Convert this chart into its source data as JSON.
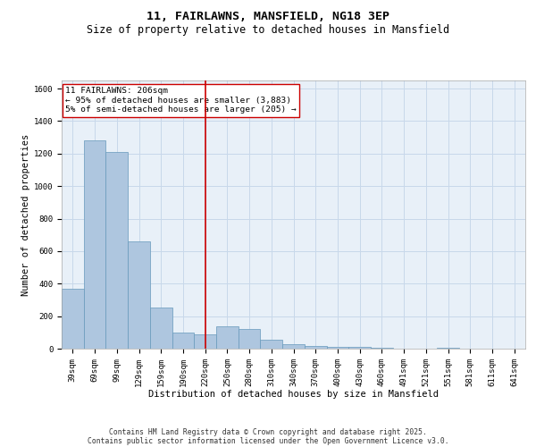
{
  "title": "11, FAIRLAWNS, MANSFIELD, NG18 3EP",
  "subtitle": "Size of property relative to detached houses in Mansfield",
  "xlabel": "Distribution of detached houses by size in Mansfield",
  "ylabel": "Number of detached properties",
  "categories": [
    "39sqm",
    "69sqm",
    "99sqm",
    "129sqm",
    "159sqm",
    "190sqm",
    "220sqm",
    "250sqm",
    "280sqm",
    "310sqm",
    "340sqm",
    "370sqm",
    "400sqm",
    "430sqm",
    "460sqm",
    "491sqm",
    "521sqm",
    "551sqm",
    "581sqm",
    "611sqm",
    "641sqm"
  ],
  "values": [
    370,
    1280,
    1210,
    660,
    255,
    100,
    90,
    135,
    120,
    55,
    25,
    15,
    10,
    10,
    3,
    0,
    0,
    3,
    0,
    0,
    0
  ],
  "bar_color": "#aec6df",
  "bar_edge_color": "#6699bb",
  "grid_color": "#c8d8ea",
  "background_color": "#e8f0f8",
  "vline_color": "#cc0000",
  "vline_x": 6.0,
  "annotation_text": "11 FAIRLAWNS: 206sqm\n← 95% of detached houses are smaller (3,883)\n5% of semi-detached houses are larger (205) →",
  "annotation_box_color": "#ffffff",
  "annotation_box_edge": "#cc0000",
  "ylim": [
    0,
    1650
  ],
  "yticks": [
    0,
    200,
    400,
    600,
    800,
    1000,
    1200,
    1400,
    1600
  ],
  "footer_line1": "Contains HM Land Registry data © Crown copyright and database right 2025.",
  "footer_line2": "Contains public sector information licensed under the Open Government Licence v3.0.",
  "title_fontsize": 9.5,
  "subtitle_fontsize": 8.5,
  "axis_label_fontsize": 7.5,
  "tick_fontsize": 6.5,
  "annotation_fontsize": 6.8,
  "footer_fontsize": 5.8
}
